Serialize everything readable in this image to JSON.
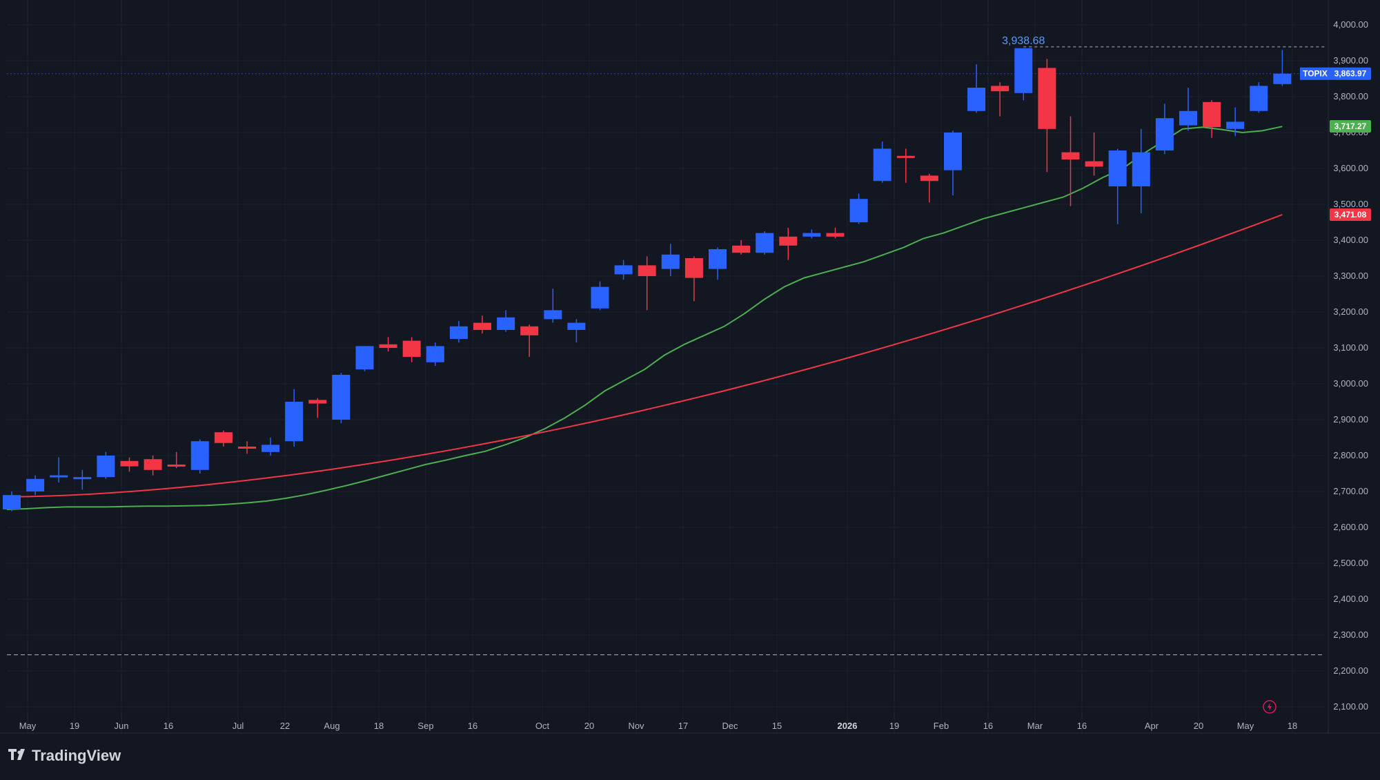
{
  "colors": {
    "background": "#131722",
    "grid": "#1e222d",
    "up": "#2962ff",
    "down": "#f23645",
    "ma_fast": "#4caf50",
    "ma_slow": "#f23645",
    "text": "#b2b5be"
  },
  "brand": {
    "name": "TradingView",
    "icon": "tradingview-logo-icon"
  },
  "chart_data": {
    "type": "candlestick",
    "symbol": "TOPIX",
    "ylim": [
      2060,
      4060
    ],
    "yticks": [
      2100,
      2200,
      2300,
      2400,
      2500,
      2600,
      2700,
      2800,
      2900,
      3000,
      3100,
      3200,
      3300,
      3400,
      3500,
      3600,
      3700,
      3800,
      3900,
      4000
    ],
    "ytick_labels": [
      "2,100.00",
      "2,200.00",
      "2,300.00",
      "2,400.00",
      "2,500.00",
      "2,600.00",
      "2,700.00",
      "2,800.00",
      "2,900.00",
      "3,000.00",
      "3,100.00",
      "3,200.00",
      "3,300.00",
      "3,400.00",
      "3,500.00",
      "3,600.00",
      "3,700.00",
      "3,800.00",
      "3,900.00",
      "4,000.00"
    ],
    "grid": true,
    "candles": [
      {
        "o": 2650,
        "h": 2700,
        "l": 2645,
        "c": 2690
      },
      {
        "o": 2700,
        "h": 2745,
        "l": 2690,
        "c": 2735
      },
      {
        "o": 2740,
        "h": 2795,
        "l": 2725,
        "c": 2745
      },
      {
        "o": 2735,
        "h": 2760,
        "l": 2705,
        "c": 2740
      },
      {
        "o": 2740,
        "h": 2810,
        "l": 2735,
        "c": 2800
      },
      {
        "o": 2785,
        "h": 2795,
        "l": 2755,
        "c": 2770
      },
      {
        "o": 2790,
        "h": 2800,
        "l": 2745,
        "c": 2760
      },
      {
        "o": 2775,
        "h": 2810,
        "l": 2765,
        "c": 2770
      },
      {
        "o": 2760,
        "h": 2845,
        "l": 2750,
        "c": 2840
      },
      {
        "o": 2865,
        "h": 2870,
        "l": 2825,
        "c": 2835
      },
      {
        "o": 2825,
        "h": 2840,
        "l": 2805,
        "c": 2820
      },
      {
        "o": 2810,
        "h": 2850,
        "l": 2800,
        "c": 2830
      },
      {
        "o": 2840,
        "h": 2985,
        "l": 2825,
        "c": 2950
      },
      {
        "o": 2955,
        "h": 2960,
        "l": 2905,
        "c": 2945
      },
      {
        "o": 2900,
        "h": 3030,
        "l": 2890,
        "c": 3025
      },
      {
        "o": 3040,
        "h": 3105,
        "l": 3035,
        "c": 3105
      },
      {
        "o": 3110,
        "h": 3130,
        "l": 3090,
        "c": 3100
      },
      {
        "o": 3120,
        "h": 3130,
        "l": 3060,
        "c": 3075
      },
      {
        "o": 3060,
        "h": 3115,
        "l": 3050,
        "c": 3105
      },
      {
        "o": 3125,
        "h": 3175,
        "l": 3115,
        "c": 3160
      },
      {
        "o": 3170,
        "h": 3190,
        "l": 3140,
        "c": 3150
      },
      {
        "o": 3150,
        "h": 3205,
        "l": 3145,
        "c": 3185
      },
      {
        "o": 3160,
        "h": 3165,
        "l": 3075,
        "c": 3135
      },
      {
        "o": 3180,
        "h": 3265,
        "l": 3170,
        "c": 3205
      },
      {
        "o": 3150,
        "h": 3180,
        "l": 3115,
        "c": 3170
      },
      {
        "o": 3210,
        "h": 3285,
        "l": 3205,
        "c": 3270
      },
      {
        "o": 3305,
        "h": 3345,
        "l": 3290,
        "c": 3330
      },
      {
        "o": 3330,
        "h": 3355,
        "l": 3205,
        "c": 3300
      },
      {
        "o": 3320,
        "h": 3390,
        "l": 3300,
        "c": 3360
      },
      {
        "o": 3350,
        "h": 3355,
        "l": 3230,
        "c": 3295
      },
      {
        "o": 3320,
        "h": 3380,
        "l": 3290,
        "c": 3375
      },
      {
        "o": 3385,
        "h": 3400,
        "l": 3360,
        "c": 3365
      },
      {
        "o": 3365,
        "h": 3425,
        "l": 3360,
        "c": 3420
      },
      {
        "o": 3410,
        "h": 3435,
        "l": 3345,
        "c": 3385
      },
      {
        "o": 3410,
        "h": 3430,
        "l": 3405,
        "c": 3420
      },
      {
        "o": 3420,
        "h": 3435,
        "l": 3405,
        "c": 3410
      },
      {
        "o": 3450,
        "h": 3530,
        "l": 3445,
        "c": 3515
      },
      {
        "o": 3565,
        "h": 3675,
        "l": 3560,
        "c": 3655
      },
      {
        "o": 3635,
        "h": 3655,
        "l": 3560,
        "c": 3630
      },
      {
        "o": 3580,
        "h": 3585,
        "l": 3505,
        "c": 3565
      },
      {
        "o": 3595,
        "h": 3705,
        "l": 3525,
        "c": 3700
      },
      {
        "o": 3760,
        "h": 3890,
        "l": 3755,
        "c": 3825
      },
      {
        "o": 3830,
        "h": 3840,
        "l": 3745,
        "c": 3815
      },
      {
        "o": 3810,
        "h": 3935,
        "l": 3790,
        "c": 3935
      },
      {
        "o": 3880,
        "h": 3905,
        "l": 3590,
        "c": 3710
      },
      {
        "o": 3645,
        "h": 3745,
        "l": 3495,
        "c": 3625
      },
      {
        "o": 3620,
        "h": 3700,
        "l": 3580,
        "c": 3605
      },
      {
        "o": 3550,
        "h": 3655,
        "l": 3445,
        "c": 3650
      },
      {
        "o": 3550,
        "h": 3710,
        "l": 3475,
        "c": 3645
      },
      {
        "o": 3650,
        "h": 3780,
        "l": 3640,
        "c": 3740
      },
      {
        "o": 3720,
        "h": 3825,
        "l": 3705,
        "c": 3760
      },
      {
        "o": 3785,
        "h": 3790,
        "l": 3685,
        "c": 3715
      },
      {
        "o": 3710,
        "h": 3770,
        "l": 3690,
        "c": 3730
      },
      {
        "o": 3760,
        "h": 3840,
        "l": 3755,
        "c": 3830
      },
      {
        "o": 3835,
        "h": 3930,
        "l": 3830,
        "c": 3864
      }
    ],
    "ma_fast": [
      2650,
      2652,
      2655,
      2657,
      2657,
      2657,
      2658,
      2659,
      2659,
      2660,
      2661,
      2664,
      2668,
      2673,
      2681,
      2691,
      2703,
      2716,
      2730,
      2745,
      2760,
      2775,
      2787,
      2800,
      2812,
      2830,
      2850,
      2875,
      2905,
      2940,
      2980,
      3010,
      3040,
      3080,
      3110,
      3135,
      3160,
      3195,
      3235,
      3270,
      3295,
      3310,
      3325,
      3340,
      3360,
      3380,
      3405,
      3420,
      3440,
      3460,
      3475,
      3490,
      3505,
      3520,
      3545,
      3575,
      3600,
      3640,
      3675,
      3710,
      3715,
      3708,
      3700,
      3705,
      3717
    ],
    "ma_fast_note": "",
    "ma_slow_last": 3471.08,
    "ma_fast_last": 3717.27,
    "last_price": 3863.97,
    "max_price": 3938.68,
    "max_label": "3,938.68",
    "support_level": 2245,
    "xticks": [
      {
        "label": "May",
        "bold": false
      },
      {
        "label": "19",
        "bold": false
      },
      {
        "label": "Jun",
        "bold": false
      },
      {
        "label": "16",
        "bold": false
      },
      {
        "label": "Jul",
        "bold": false
      },
      {
        "label": "22",
        "bold": false
      },
      {
        "label": "Aug",
        "bold": false
      },
      {
        "label": "18",
        "bold": false
      },
      {
        "label": "Sep",
        "bold": false
      },
      {
        "label": "16",
        "bold": false
      },
      {
        "label": "Oct",
        "bold": false
      },
      {
        "label": "20",
        "bold": false
      },
      {
        "label": "Nov",
        "bold": false
      },
      {
        "label": "17",
        "bold": false
      },
      {
        "label": "Dec",
        "bold": false
      },
      {
        "label": "15",
        "bold": false
      },
      {
        "label": "2026",
        "bold": true
      },
      {
        "label": "19",
        "bold": false
      },
      {
        "label": "Feb",
        "bold": false
      },
      {
        "label": "16",
        "bold": false
      },
      {
        "label": "Mar",
        "bold": false
      },
      {
        "label": "16",
        "bold": false
      },
      {
        "label": "Apr",
        "bold": false
      },
      {
        "label": "20",
        "bold": false
      },
      {
        "label": "May",
        "bold": false
      },
      {
        "label": "18",
        "bold": false
      }
    ],
    "tags": [
      {
        "text": "TOPIX",
        "value_label": "3,863.97",
        "value": 3863.97,
        "color": "#2962ff"
      },
      {
        "text": "",
        "value_label": "3,717.27",
        "value": 3717.27,
        "color": "#4caf50"
      },
      {
        "text": "",
        "value_label": "3,471.08",
        "value": 3471.08,
        "color": "#f23645"
      }
    ]
  }
}
